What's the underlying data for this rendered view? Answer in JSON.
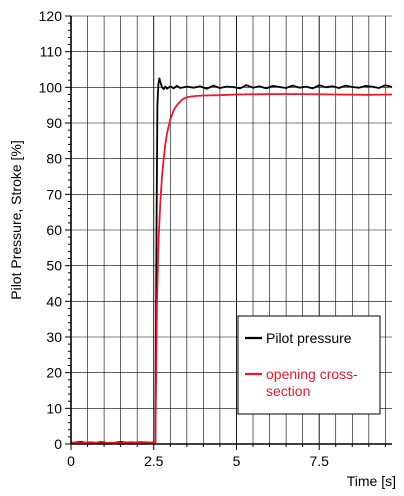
{
  "chart_data": {
    "type": "line",
    "ylabel": "Pilot Pressure, Stroke [%]",
    "xlabel": "Time [s]",
    "xlim": [
      0,
      9.7
    ],
    "ylim": [
      0,
      120
    ],
    "x_ticks": [
      0,
      2.5,
      5,
      7.5
    ],
    "x_tick_labels": [
      "0",
      "2.5",
      "5",
      "7.5"
    ],
    "y_ticks": [
      0,
      10,
      20,
      30,
      40,
      50,
      60,
      70,
      80,
      90,
      100,
      110,
      120
    ],
    "y_tick_labels": [
      "0",
      "10",
      "20",
      "30",
      "40",
      "50",
      "60",
      "70",
      "80",
      "90",
      "100",
      "110",
      "120"
    ],
    "grid": true,
    "legend_position": "bottom-right",
    "series": [
      {
        "name": "Pilot pressure",
        "color": "#000000",
        "x": [
          0,
          0.3,
          0.6,
          0.9,
          1.2,
          1.5,
          1.8,
          2.1,
          2.4,
          2.55,
          2.58,
          2.61,
          2.64,
          2.67,
          2.7,
          2.75,
          2.8,
          2.85,
          2.9,
          3.0,
          3.1,
          3.2,
          3.3,
          3.5,
          3.7,
          3.9,
          4.1,
          4.3,
          4.5,
          4.7,
          4.9,
          5.1,
          5.3,
          5.5,
          5.7,
          5.9,
          6.1,
          6.3,
          6.5,
          6.7,
          6.9,
          7.1,
          7.3,
          7.5,
          7.7,
          7.9,
          8.1,
          8.3,
          8.5,
          8.7,
          8.9,
          9.1,
          9.3,
          9.5,
          9.7
        ],
        "y": [
          0.3,
          0.6,
          0.1,
          0.5,
          0.2,
          0.6,
          0.3,
          0.5,
          0.4,
          0.5,
          55,
          95,
          101,
          102.5,
          101.5,
          100,
          99.5,
          100.2,
          99.6,
          100.3,
          99.7,
          100.4,
          99.8,
          100.2,
          99.9,
          100.3,
          99.6,
          100.5,
          99.8,
          100.2,
          100.1,
          99.7,
          100.6,
          99.9,
          100.3,
          99.7,
          100.4,
          100.1,
          99.8,
          100.5,
          99.9,
          100.2,
          99.7,
          100.6,
          100.0,
          100.3,
          99.8,
          100.5,
          100.1,
          99.9,
          100.4,
          100.2,
          99.8,
          100.6,
          100.1
        ]
      },
      {
        "name": "opening cross-section",
        "color": "#e8192c",
        "x": [
          0,
          0.3,
          0.6,
          0.9,
          1.2,
          1.5,
          1.8,
          2.1,
          2.4,
          2.55,
          2.6,
          2.65,
          2.7,
          2.75,
          2.8,
          2.85,
          2.9,
          3.0,
          3.1,
          3.2,
          3.3,
          3.4,
          3.5,
          3.6,
          3.7,
          3.8,
          4.0,
          4.5,
          5.0,
          6.0,
          7.0,
          8.0,
          9.0,
          9.7
        ],
        "y": [
          0.4,
          0.3,
          0.5,
          0.2,
          0.4,
          0.3,
          0.5,
          0.4,
          0.3,
          0.5,
          40,
          58,
          68,
          75,
          80,
          84,
          87,
          91,
          93.5,
          95,
          96,
          96.8,
          97.2,
          97.4,
          97.5,
          97.6,
          97.7,
          97.8,
          98.0,
          98.1,
          98.1,
          98.0,
          97.9,
          98.0
        ]
      }
    ],
    "legend_entries": [
      {
        "label_lines": [
          "Pilot pressure"
        ]
      },
      {
        "label_lines": [
          "opening cross-",
          "section"
        ]
      }
    ]
  }
}
